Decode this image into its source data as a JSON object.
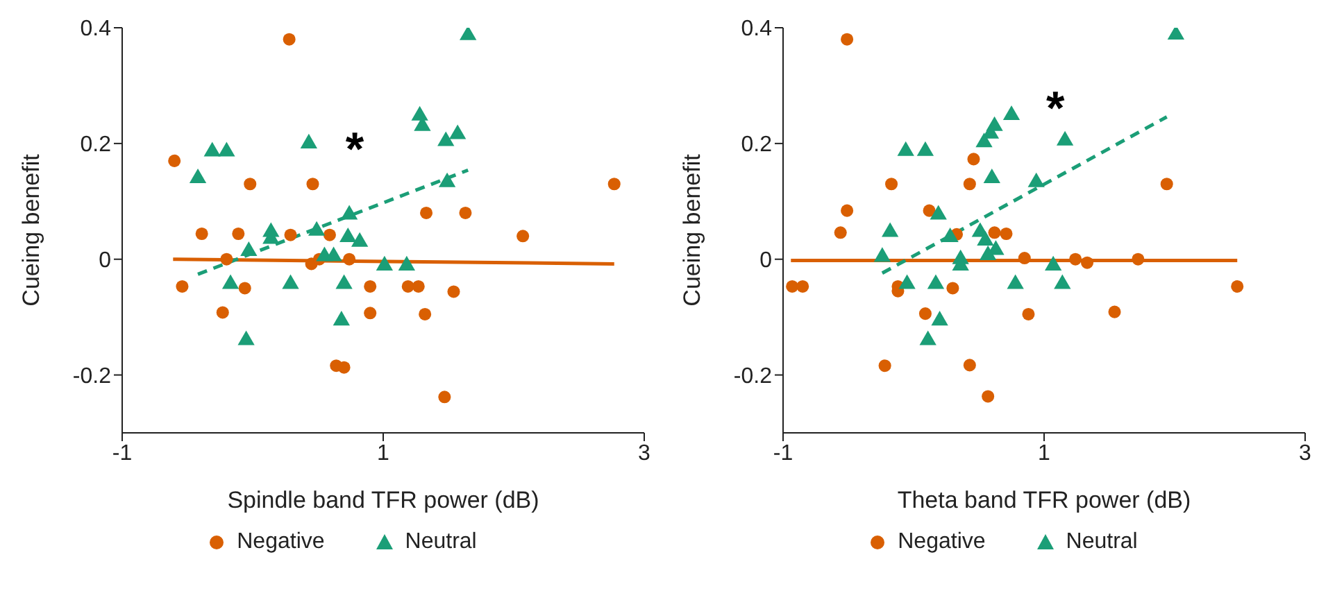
{
  "chart_data": [
    {
      "type": "scatter",
      "xlabel": "Spindle band TFR power (dB)",
      "ylabel": "Cueing benefit",
      "xlim": [
        -1,
        3
      ],
      "xticks": [
        -1,
        1,
        3
      ],
      "ylim": [
        -0.3,
        0.4
      ],
      "yticks": [
        -0.2,
        0,
        0.2,
        0.4
      ],
      "grid": false,
      "legend": "bottom",
      "annotations": [
        "*"
      ],
      "series": [
        {
          "name": "Negative",
          "marker": "circle",
          "color": "#d95f02",
          "x": [
            0.28,
            -0.6,
            -0.02,
            0.46,
            2.77,
            1.33,
            1.63,
            -0.39,
            -0.11,
            0.29,
            0.59,
            2.07,
            -0.2,
            0.45,
            0.51,
            0.74,
            -0.54,
            -0.06,
            0.9,
            1.19,
            1.27,
            1.54,
            -0.23,
            0.9,
            1.32,
            0.64,
            0.7,
            1.47
          ],
          "values": [
            0.38,
            0.17,
            0.13,
            0.13,
            0.13,
            0.08,
            0.08,
            0.044,
            0.044,
            0.042,
            0.042,
            0.04,
            0.0,
            -0.008,
            0.0,
            0.0,
            -0.047,
            -0.05,
            -0.047,
            -0.047,
            -0.047,
            -0.056,
            -0.092,
            -0.093,
            -0.095,
            -0.184,
            -0.187,
            -0.238
          ]
        },
        {
          "name": "Neutral",
          "marker": "triangle",
          "color": "#1b9e77",
          "x": [
            1.65,
            1.28,
            1.3,
            1.48,
            1.57,
            0.43,
            -0.31,
            -0.2,
            -0.42,
            1.49,
            0.74,
            0.14,
            0.14,
            0.49,
            -0.03,
            0.73,
            0.82,
            0.55,
            0.62,
            1.01,
            1.18,
            -0.17,
            0.29,
            0.7,
            0.68,
            -0.05
          ],
          "values": [
            0.387,
            0.248,
            0.23,
            0.204,
            0.216,
            0.2,
            0.186,
            0.186,
            0.14,
            0.133,
            0.077,
            0.047,
            0.035,
            0.049,
            0.014,
            0.038,
            0.03,
            0.005,
            0.005,
            -0.011,
            -0.011,
            -0.043,
            -0.043,
            -0.043,
            -0.106,
            -0.14
          ]
        },
        {
          "type": "line",
          "color": "#d95f02",
          "line_style": "solid",
          "x": [
            -0.61,
            2.77
          ],
          "values": [
            0.0,
            -0.008
          ]
        },
        {
          "type": "line",
          "color": "#1b9e77",
          "line_style": "dashed",
          "x": [
            -0.42,
            1.65
          ],
          "values": [
            -0.026,
            0.154
          ]
        }
      ]
    },
    {
      "type": "scatter",
      "xlabel": "Theta band TFR power (dB)",
      "ylabel": "Cueing benefit",
      "xlim": [
        -1,
        3
      ],
      "xticks": [
        -1,
        1,
        3
      ],
      "ylim": [
        -0.3,
        0.4
      ],
      "yticks": [
        -0.2,
        0,
        0.2,
        0.4
      ],
      "grid": false,
      "legend": "bottom",
      "annotations": [
        "*"
      ],
      "series": [
        {
          "name": "Negative",
          "marker": "circle",
          "color": "#d95f02",
          "x": [
            -0.51,
            0.46,
            -0.17,
            0.43,
            1.94,
            -0.51,
            0.12,
            -0.56,
            0.33,
            0.62,
            0.71,
            0.85,
            1.24,
            1.33,
            1.72,
            -0.93,
            -0.85,
            -0.12,
            -0.12,
            0.3,
            2.48,
            0.09,
            0.88,
            1.54,
            -0.22,
            0.43,
            0.57
          ],
          "values": [
            0.38,
            0.173,
            0.13,
            0.13,
            0.13,
            0.084,
            0.084,
            0.046,
            0.043,
            0.046,
            0.044,
            0.002,
            0.0,
            -0.006,
            0.0,
            -0.047,
            -0.047,
            -0.047,
            -0.055,
            -0.05,
            -0.047,
            -0.094,
            -0.095,
            -0.091,
            -0.184,
            -0.183,
            -0.237
          ]
        },
        {
          "name": "Neutral",
          "marker": "triangle",
          "color": "#1b9e77",
          "x": [
            2.01,
            0.75,
            0.62,
            0.59,
            0.54,
            -0.06,
            0.09,
            1.16,
            0.6,
            0.94,
            0.19,
            -0.18,
            0.51,
            0.28,
            0.55,
            0.63,
            0.57,
            -0.24,
            0.36,
            0.36,
            1.07,
            -0.05,
            0.17,
            0.78,
            1.14,
            0.2,
            0.11
          ],
          "values": [
            0.388,
            0.249,
            0.23,
            0.217,
            0.202,
            0.187,
            0.187,
            0.205,
            0.14,
            0.133,
            0.077,
            0.047,
            0.047,
            0.038,
            0.032,
            0.016,
            0.007,
            0.004,
            0.0,
            -0.011,
            -0.011,
            -0.043,
            -0.043,
            -0.043,
            -0.043,
            -0.106,
            -0.14
          ]
        },
        {
          "type": "line",
          "color": "#d95f02",
          "line_style": "solid",
          "x": [
            -0.94,
            2.48
          ],
          "values": [
            -0.002,
            -0.002
          ]
        },
        {
          "type": "line",
          "color": "#1b9e77",
          "line_style": "dashed",
          "x": [
            -0.24,
            1.94
          ],
          "values": [
            -0.024,
            0.246
          ]
        }
      ]
    }
  ]
}
